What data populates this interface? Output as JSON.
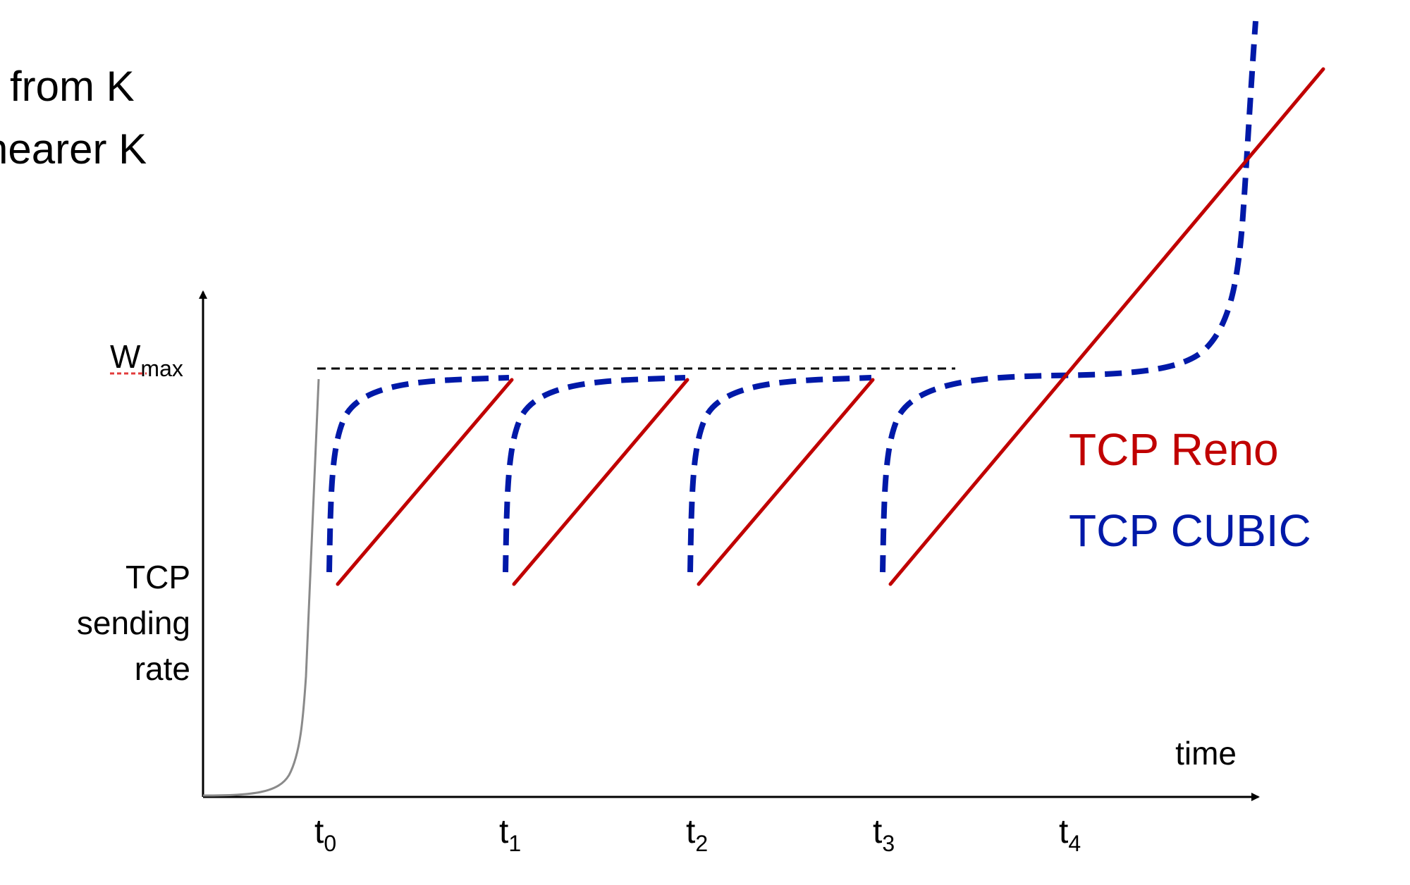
{
  "fragment_text": {
    "line1": "from K",
    "line2": "nearer K"
  },
  "axes": {
    "y_label_lines": [
      "TCP",
      "sending",
      "rate"
    ],
    "x_label": "time",
    "wmax_main": "W",
    "wmax_sub": "max"
  },
  "ticks": [
    {
      "main": "t",
      "sub": "0"
    },
    {
      "main": "t",
      "sub": "1"
    },
    {
      "main": "t",
      "sub": "2"
    },
    {
      "main": "t",
      "sub": "3"
    },
    {
      "main": "t",
      "sub": "4"
    }
  ],
  "legend": [
    {
      "label": "TCP Reno",
      "color": "#C00000"
    },
    {
      "label": "TCP CUBIC",
      "color": "#0019A8"
    }
  ],
  "colors": {
    "reno": "#C00000",
    "cubic": "#0019A8",
    "slow_start": "#8a8a8a",
    "wmax_line": "#000000",
    "axis": "#000000"
  }
}
